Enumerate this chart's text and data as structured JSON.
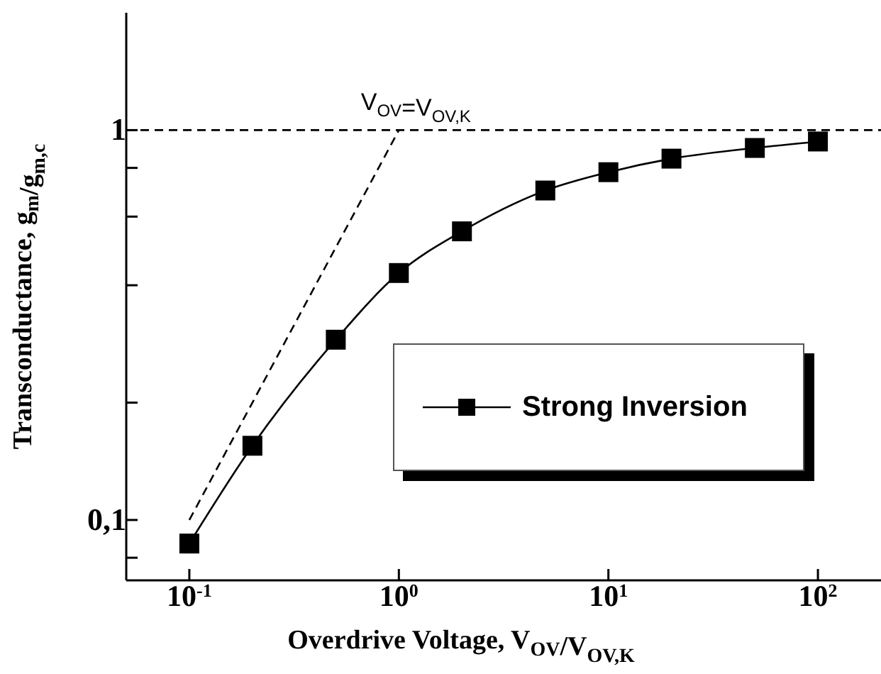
{
  "chart_data": {
    "type": "line",
    "xlabel": "Overdrive Voltage, V$_{OV}$/V$_{OV,K}$",
    "ylabel": "Transconductance,  g$_{m}$/g$_{m,c}$",
    "log": "xy",
    "xlim": [
      0.05,
      200
    ],
    "ylim": [
      0.07,
      2
    ],
    "xticks": [
      {
        "value": 0.1,
        "label": "10$^{-1}$"
      },
      {
        "value": 1,
        "label": "10$^{0}$"
      },
      {
        "value": 10,
        "label": "10$^{1}$"
      },
      {
        "value": 100,
        "label": "10$^{2}$"
      }
    ],
    "yticks": [
      {
        "value": 0.08,
        "label": null
      },
      {
        "value": 0.1,
        "label": "0,1"
      },
      {
        "value": 0.2,
        "label": null
      },
      {
        "value": 0.4,
        "label": null
      },
      {
        "value": 0.6,
        "label": null
      },
      {
        "value": 0.8,
        "label": null
      },
      1
    ],
    "grid": false,
    "legend": "right",
    "series": [
      {
        "name": "Strong Inversion",
        "color": "#000000",
        "marker": "square",
        "line_style": "solid",
        "x": [
          0.1,
          0.2,
          0.5,
          1,
          2,
          5,
          10,
          20,
          50,
          100
        ],
        "values": [
          0.087,
          0.155,
          0.29,
          0.43,
          0.55,
          0.7,
          0.78,
          0.845,
          0.9,
          0.935
        ]
      },
      {
        "color": "#000000",
        "marker": "none",
        "line_style": "dashed",
        "x": [
          0.1,
          1
        ],
        "values": [
          0.1,
          1
        ]
      }
    ],
    "ref_lines": [
      {
        "axis": "y",
        "value": 1,
        "label": null,
        "line_style": "dashed",
        "color": "#000000"
      }
    ],
    "annotations": [
      {
        "text": "V$_{OV}$=V$_{OV,K}$",
        "x": 1,
        "y": 1
      }
    ]
  }
}
